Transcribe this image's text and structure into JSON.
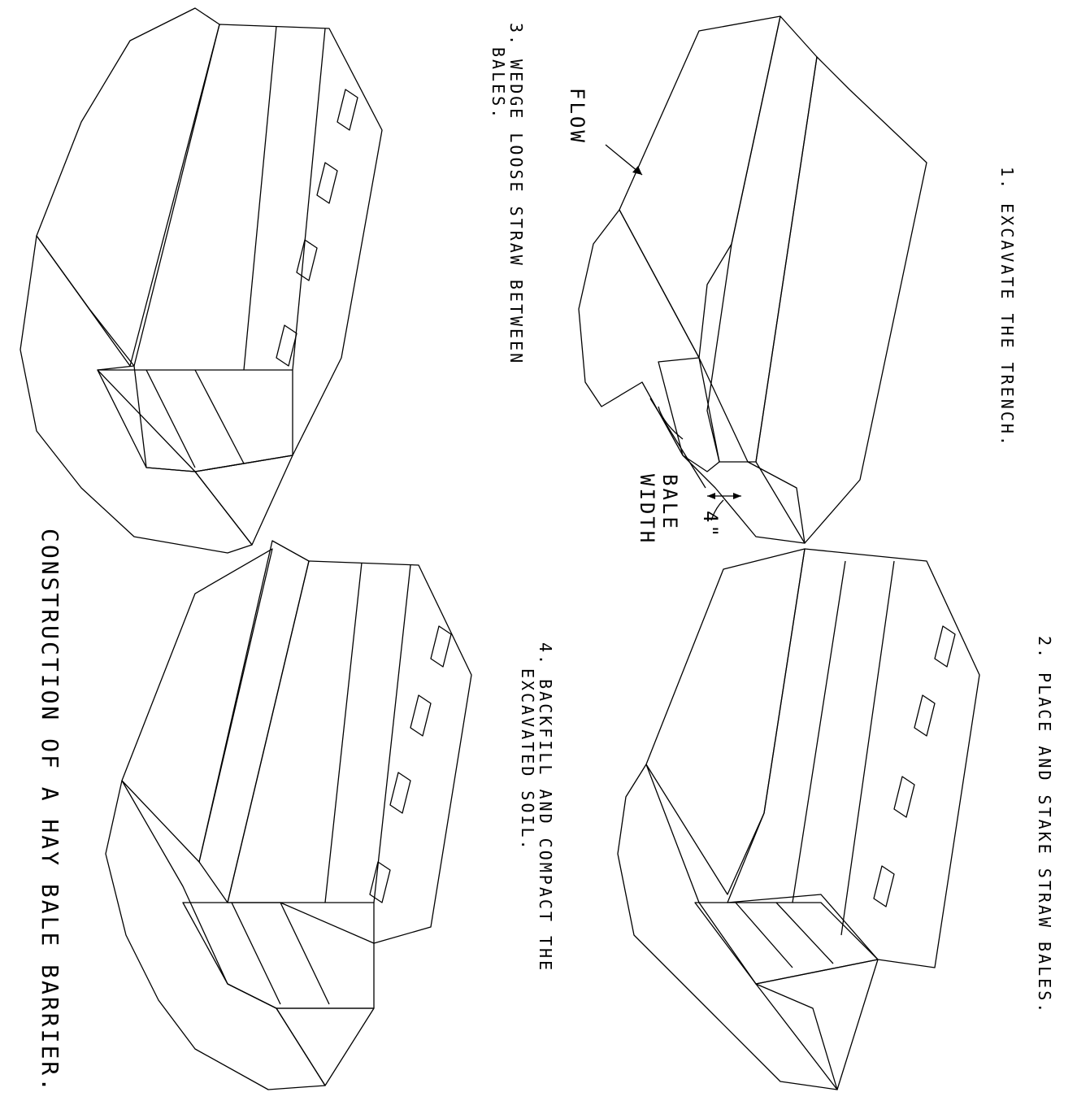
{
  "title": "CONSTRUCTION OF A HAY BALE BARRIER.",
  "steps": [
    {
      "number": "1.",
      "text": "EXCAVATE THE TRENCH."
    },
    {
      "number": "2.",
      "text": "PLACE AND STAKE STRAW BALES."
    },
    {
      "number": "3.",
      "lines": [
        "WEDGE LOOSE STRAW BETWEEN",
        "BALES."
      ]
    },
    {
      "number": "4.",
      "lines": [
        "BACKFILL AND COMPACT THE",
        "EXCAVATED SOIL."
      ]
    }
  ],
  "callouts": {
    "flow": "FLOW",
    "bale_width": [
      "BALE",
      "WIDTH"
    ],
    "depth": "4\""
  }
}
